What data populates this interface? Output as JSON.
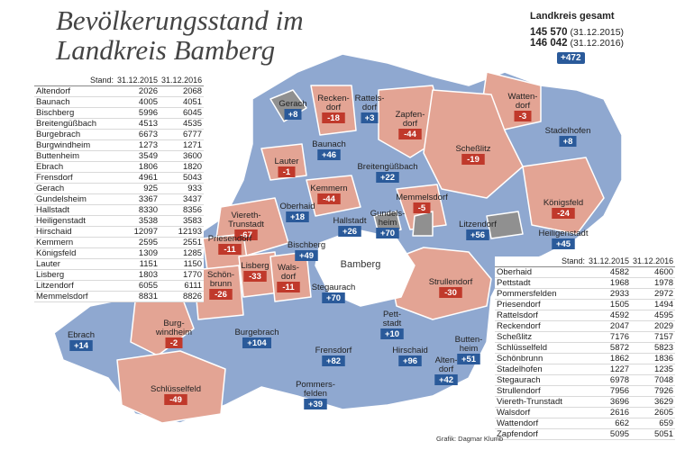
{
  "title": "Bevölkerungsstand im Landkreis Bamberg",
  "colors": {
    "growth": "#8fa8d0",
    "decline": "#e3a494",
    "city": "#909090",
    "positive_badge": "#2a5a9a",
    "negative_badge": "#c0392b"
  },
  "summary": {
    "heading": "Landkreis gesamt",
    "value_2015": "145 570",
    "date_2015": "(31.12.2015)",
    "value_2016": "146 042",
    "date_2016": "(31.12.2016)",
    "change": "+472"
  },
  "table_headers": {
    "stand_label": "Stand:",
    "col_2015": "31.12.2015",
    "col_2016": "31.12.2016"
  },
  "table_left": [
    {
      "name": "Altendorf",
      "v2015": "2026",
      "v2016": "2068"
    },
    {
      "name": "Baunach",
      "v2015": "4005",
      "v2016": "4051"
    },
    {
      "name": "Bischberg",
      "v2015": "5996",
      "v2016": "6045"
    },
    {
      "name": "Breitengüßbach",
      "v2015": "4513",
      "v2016": "4535"
    },
    {
      "name": "Burgebrach",
      "v2015": "6673",
      "v2016": "6777"
    },
    {
      "name": "Burgwindheim",
      "v2015": "1273",
      "v2016": "1271"
    },
    {
      "name": "Buttenheim",
      "v2015": "3549",
      "v2016": "3600"
    },
    {
      "name": "Ebrach",
      "v2015": "1806",
      "v2016": "1820"
    },
    {
      "name": "Frensdorf",
      "v2015": "4961",
      "v2016": "5043"
    },
    {
      "name": "Gerach",
      "v2015": "925",
      "v2016": "933"
    },
    {
      "name": "Gundelsheim",
      "v2015": "3367",
      "v2016": "3437"
    },
    {
      "name": "Hallstadt",
      "v2015": "8330",
      "v2016": "8356"
    },
    {
      "name": "Heiligenstadt",
      "v2015": "3538",
      "v2016": "3583"
    },
    {
      "name": "Hirschaid",
      "v2015": "12097",
      "v2016": "12193"
    },
    {
      "name": "Kemmern",
      "v2015": "2595",
      "v2016": "2551"
    },
    {
      "name": "Königsfeld",
      "v2015": "1309",
      "v2016": "1285"
    },
    {
      "name": "Lauter",
      "v2015": "1151",
      "v2016": "1150"
    },
    {
      "name": "Lisberg",
      "v2015": "1803",
      "v2016": "1770"
    },
    {
      "name": "Litzendorf",
      "v2015": "6055",
      "v2016": "6111"
    },
    {
      "name": "Memmelsdorf",
      "v2015": "8831",
      "v2016": "8826"
    }
  ],
  "table_right": [
    {
      "name": "Oberhaid",
      "v2015": "4582",
      "v2016": "4600"
    },
    {
      "name": "Pettstadt",
      "v2015": "1968",
      "v2016": "1978"
    },
    {
      "name": "Pommersfelden",
      "v2015": "2933",
      "v2016": "2972"
    },
    {
      "name": "Priesendorf",
      "v2015": "1505",
      "v2016": "1494"
    },
    {
      "name": "Rattelsdorf",
      "v2015": "4592",
      "v2016": "4595"
    },
    {
      "name": "Reckendorf",
      "v2015": "2047",
      "v2016": "2029"
    },
    {
      "name": "Scheßlitz",
      "v2015": "7176",
      "v2016": "7157"
    },
    {
      "name": "Schlüsselfeld",
      "v2015": "5872",
      "v2016": "5823"
    },
    {
      "name": "Schönbrunn",
      "v2015": "1862",
      "v2016": "1836"
    },
    {
      "name": "Stadelhofen",
      "v2015": "1227",
      "v2016": "1235"
    },
    {
      "name": "Stegaurach",
      "v2015": "6978",
      "v2016": "7048"
    },
    {
      "name": "Strullendorf",
      "v2015": "7956",
      "v2016": "7926"
    },
    {
      "name": "Viereth-Trunstadt",
      "v2015": "3696",
      "v2016": "3629"
    },
    {
      "name": "Walsdorf",
      "v2015": "2616",
      "v2016": "2605"
    },
    {
      "name": "Wattendorf",
      "v2015": "662",
      "v2016": "659"
    },
    {
      "name": "Zapfendorf",
      "v2015": "5095",
      "v2016": "5051"
    }
  ],
  "map": {
    "city_label": "Bamberg",
    "labels": [
      {
        "id": "gerach",
        "name": "Gerach",
        "change": "+8"
      },
      {
        "id": "reckendorf",
        "name": "Recken-\ndorf",
        "change": "-18"
      },
      {
        "id": "rattelsdorf",
        "name": "Rattels-\ndorf",
        "change": "+3"
      },
      {
        "id": "zapfendorf",
        "name": "Zapfen-\ndorf",
        "change": "-44"
      },
      {
        "id": "wattendorf",
        "name": "Watten-\ndorf",
        "change": "-3"
      },
      {
        "id": "stadelhofen",
        "name": "Stadelhofen",
        "change": "+8"
      },
      {
        "id": "baunach",
        "name": "Baunach",
        "change": "+46"
      },
      {
        "id": "lauter",
        "name": "Lauter",
        "change": "-1"
      },
      {
        "id": "breitenguessbach",
        "name": "Breitengüßbach",
        "change": "+22"
      },
      {
        "id": "schesslitz",
        "name": "Scheßlitz",
        "change": "-19"
      },
      {
        "id": "kemmern",
        "name": "Kemmern",
        "change": "-44"
      },
      {
        "id": "memmelsdorf",
        "name": "Memmelsdorf",
        "change": "-5"
      },
      {
        "id": "koenigsfeld",
        "name": "Königsfeld",
        "change": "-24"
      },
      {
        "id": "oberhaid",
        "name": "Oberhaid",
        "change": "+18"
      },
      {
        "id": "hallstadt",
        "name": "Hallstadt",
        "change": "+26"
      },
      {
        "id": "gundelsheim",
        "name": "Gundels-\nheim",
        "change": "+70"
      },
      {
        "id": "litzendorf",
        "name": "Litzendorf",
        "change": "+56"
      },
      {
        "id": "heiligenstadt",
        "name": "Heiligenstadt",
        "change": "+45"
      },
      {
        "id": "viereth",
        "name": "Viereth-\nTrunstadt",
        "change": "-67"
      },
      {
        "id": "priesendorf",
        "name": "Priesendorf",
        "change": "-11"
      },
      {
        "id": "bischberg",
        "name": "Bischberg",
        "change": "+49"
      },
      {
        "id": "lisberg",
        "name": "Lisberg",
        "change": "-33"
      },
      {
        "id": "walsdorf",
        "name": "Wals-\ndorf",
        "change": "-11"
      },
      {
        "id": "schoenbrunn",
        "name": "Schön-\nbrunn",
        "change": "-26"
      },
      {
        "id": "stegaurach",
        "name": "Stegaurach",
        "change": "+70"
      },
      {
        "id": "strullendorf",
        "name": "Strullendorf",
        "change": "-30"
      },
      {
        "id": "burgwindheim",
        "name": "Burg-\nwindheim",
        "change": "-2"
      },
      {
        "id": "burgebrach",
        "name": "Burgebrach",
        "change": "+104"
      },
      {
        "id": "pettstadt",
        "name": "Pett-\nstadt",
        "change": "+10"
      },
      {
        "id": "ebrach",
        "name": "Ebrach",
        "change": "+14"
      },
      {
        "id": "frensdorf",
        "name": "Frensdorf",
        "change": "+82"
      },
      {
        "id": "hirschaid",
        "name": "Hirschaid",
        "change": "+96"
      },
      {
        "id": "buttenheim",
        "name": "Butten-\nheim",
        "change": "+51"
      },
      {
        "id": "altendorf",
        "name": "Alten-\ndorf",
        "change": "+42"
      },
      {
        "id": "schluesselfeld",
        "name": "Schlüsselfeld",
        "change": "-49"
      },
      {
        "id": "pommersfelden",
        "name": "Pommers-\nfelden",
        "change": "+39"
      }
    ]
  },
  "credit": "Grafik: Dagmar Klumb"
}
